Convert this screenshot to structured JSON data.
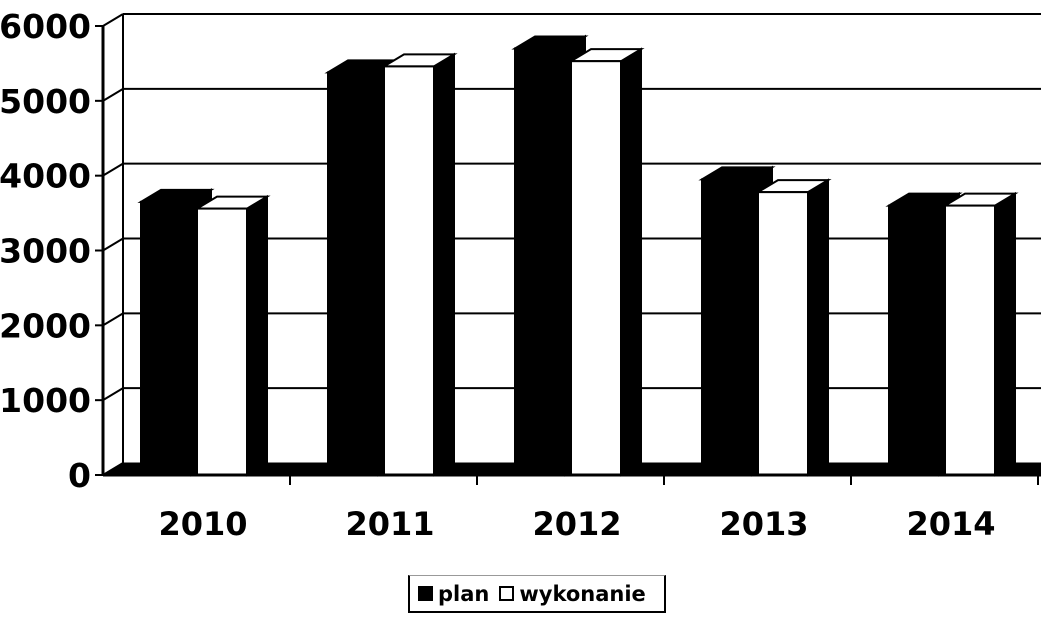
{
  "chart_data": {
    "type": "bar",
    "categories": [
      "2010",
      "2011",
      "2012",
      "2013",
      "2014"
    ],
    "series": [
      {
        "name": "plan",
        "values": [
          3650,
          5380,
          5700,
          3950,
          3600
        ],
        "color": "#000000"
      },
      {
        "name": "wykonanie",
        "values": [
          3560,
          5460,
          5530,
          3780,
          3600
        ],
        "color": "#ffffff"
      }
    ],
    "ylim": [
      0,
      6000
    ],
    "yticks": [
      "0",
      "1000",
      "2000",
      "3000",
      "4000",
      "5000",
      "6000"
    ],
    "grid": true,
    "legend_position": "bottom",
    "title": "",
    "xlabel": "",
    "ylabel": ""
  }
}
